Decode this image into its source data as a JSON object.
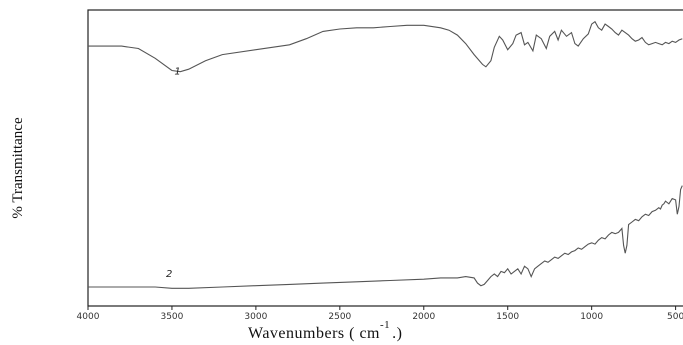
{
  "chart_data": {
    "type": "line",
    "title": "",
    "ylabel": "% Transmittance",
    "xlabel": "Wavenumbers ( cm",
    "xlabel_sup": "-1",
    "xlabel_suffix": ".)",
    "x_ticks": [
      4000,
      3500,
      3000,
      2500,
      2000,
      1500,
      1000,
      500
    ],
    "xlim": [
      4000,
      450
    ],
    "ylim": [
      0,
      100
    ],
    "grid": false,
    "series": [
      {
        "name": "1",
        "x": [
          4000,
          3800,
          3700,
          3600,
          3500,
          3450,
          3400,
          3300,
          3200,
          3000,
          2800,
          2700,
          2600,
          2500,
          2400,
          2300,
          2200,
          2100,
          2000,
          1900,
          1850,
          1800,
          1750,
          1700,
          1650,
          1630,
          1600,
          1580,
          1550,
          1530,
          1500,
          1470,
          1450,
          1420,
          1400,
          1380,
          1350,
          1330,
          1300,
          1270,
          1250,
          1220,
          1200,
          1180,
          1150,
          1120,
          1100,
          1080,
          1050,
          1020,
          1000,
          980,
          960,
          940,
          920,
          900,
          880,
          860,
          840,
          820,
          800,
          780,
          760,
          740,
          720,
          700,
          680,
          660,
          640,
          620,
          600,
          580,
          560,
          540,
          520,
          500,
          480,
          460
        ],
        "y": [
          77,
          77,
          75,
          67,
          57,
          56,
          58,
          65,
          70,
          74,
          78,
          83,
          89,
          91,
          92,
          92,
          93,
          94,
          94,
          92,
          90,
          86,
          79,
          70,
          62,
          60,
          65,
          76,
          85,
          82,
          74,
          79,
          86,
          88,
          78,
          80,
          73,
          86,
          83,
          75,
          85,
          89,
          82,
          90,
          85,
          88,
          79,
          77,
          83,
          87,
          95,
          97,
          92,
          90,
          95,
          93,
          91,
          88,
          86,
          90,
          88,
          86,
          83,
          81,
          82,
          84,
          80,
          78,
          79,
          80,
          79,
          78,
          80,
          79,
          81,
          80,
          82,
          83
        ]
      },
      {
        "name": "2",
        "x": [
          4000,
          3800,
          3600,
          3500,
          3450,
          3400,
          3200,
          3000,
          2800,
          2600,
          2400,
          2200,
          2000,
          1900,
          1800,
          1750,
          1700,
          1680,
          1660,
          1640,
          1620,
          1600,
          1580,
          1560,
          1540,
          1520,
          1500,
          1480,
          1460,
          1440,
          1420,
          1400,
          1380,
          1360,
          1340,
          1320,
          1300,
          1280,
          1260,
          1240,
          1220,
          1200,
          1180,
          1160,
          1140,
          1120,
          1100,
          1080,
          1060,
          1040,
          1020,
          1000,
          980,
          960,
          940,
          920,
          900,
          880,
          860,
          840,
          820,
          810,
          800,
          790,
          780,
          760,
          740,
          720,
          700,
          680,
          660,
          640,
          620,
          600,
          590,
          580,
          570,
          560,
          550,
          540,
          520,
          500,
          490,
          480,
          470,
          460
        ],
        "y": [
          10,
          10,
          10,
          9,
          9,
          9,
          10,
          11,
          12,
          13,
          14,
          15,
          16,
          17,
          17,
          18,
          17,
          13,
          11,
          12,
          15,
          18,
          20,
          18,
          22,
          21,
          24,
          20,
          22,
          24,
          20,
          26,
          24,
          18,
          24,
          26,
          28,
          30,
          29,
          31,
          33,
          32,
          34,
          36,
          35,
          37,
          38,
          40,
          39,
          41,
          43,
          44,
          43,
          46,
          48,
          47,
          50,
          52,
          51,
          52,
          55,
          42,
          36,
          42,
          58,
          60,
          62,
          61,
          64,
          66,
          65,
          68,
          69,
          71,
          70,
          73,
          74,
          76,
          75,
          74,
          78,
          77,
          66,
          72,
          85,
          88
        ]
      }
    ],
    "curve_labels": [
      "1",
      "2"
    ]
  }
}
